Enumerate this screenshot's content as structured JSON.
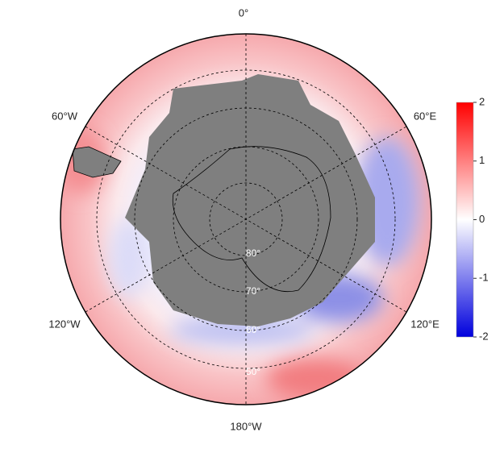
{
  "map": {
    "longitude_labels": [
      "0°",
      "60°E",
      "120°E",
      "180°W",
      "120°W",
      "60°W"
    ],
    "latitude_labels": [
      "80°",
      "70°",
      "60°",
      "50°"
    ]
  },
  "colorbar": {
    "lim": [
      -2,
      2
    ],
    "ticks": [
      2,
      1,
      0,
      -1,
      -2
    ]
  }
}
